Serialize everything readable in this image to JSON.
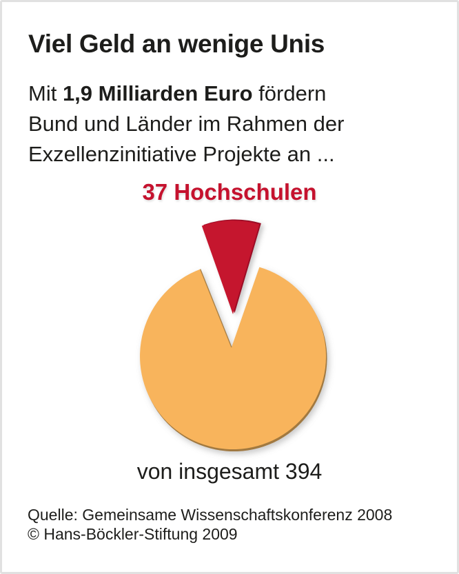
{
  "colors": {
    "accent_red": "#c5122e",
    "pie_red_dark": "#9b0e26",
    "pie_orange": "#f8b45c",
    "pie_orange_dark": "#a1793f",
    "text": "#1d1d1b",
    "frame_border": "#e1e1e1",
    "background": "#ffffff"
  },
  "card": {
    "title": "Viel Geld an wenige Unis",
    "intro": {
      "line1": {
        "pre": "Mit ",
        "bold": "1,9 Milliarden Euro",
        "post": " fördern"
      },
      "line2": "Bund und Länder im Rahmen der",
      "line3": "Exzellenzinitiative Projekte an ..."
    },
    "callout_label": "37 Hochschulen",
    "total_label": "von insgesamt 394",
    "source_line1": "Quelle: Gemeinsame Wissenschaftskonferenz 2008",
    "source_line2": "© Hans-Böckler-Stiftung 2009"
  },
  "chart_data": {
    "type": "pie",
    "title": "Viel Geld an wenige Unis",
    "subtitle": "Mit 1,9 Milliarden Euro fördern Bund und Länder im Rahmen der Exzellenzinitiative Projekte an ...",
    "total": 394,
    "slices": [
      {
        "label": "37 Hochschulen",
        "value": 37,
        "color": "#c5122e",
        "exploded": true
      },
      {
        "label": "von insgesamt 394",
        "value": 357,
        "color": "#f8b45c",
        "exploded": false
      }
    ],
    "start": "top",
    "legend_position": "none",
    "grid": false
  }
}
